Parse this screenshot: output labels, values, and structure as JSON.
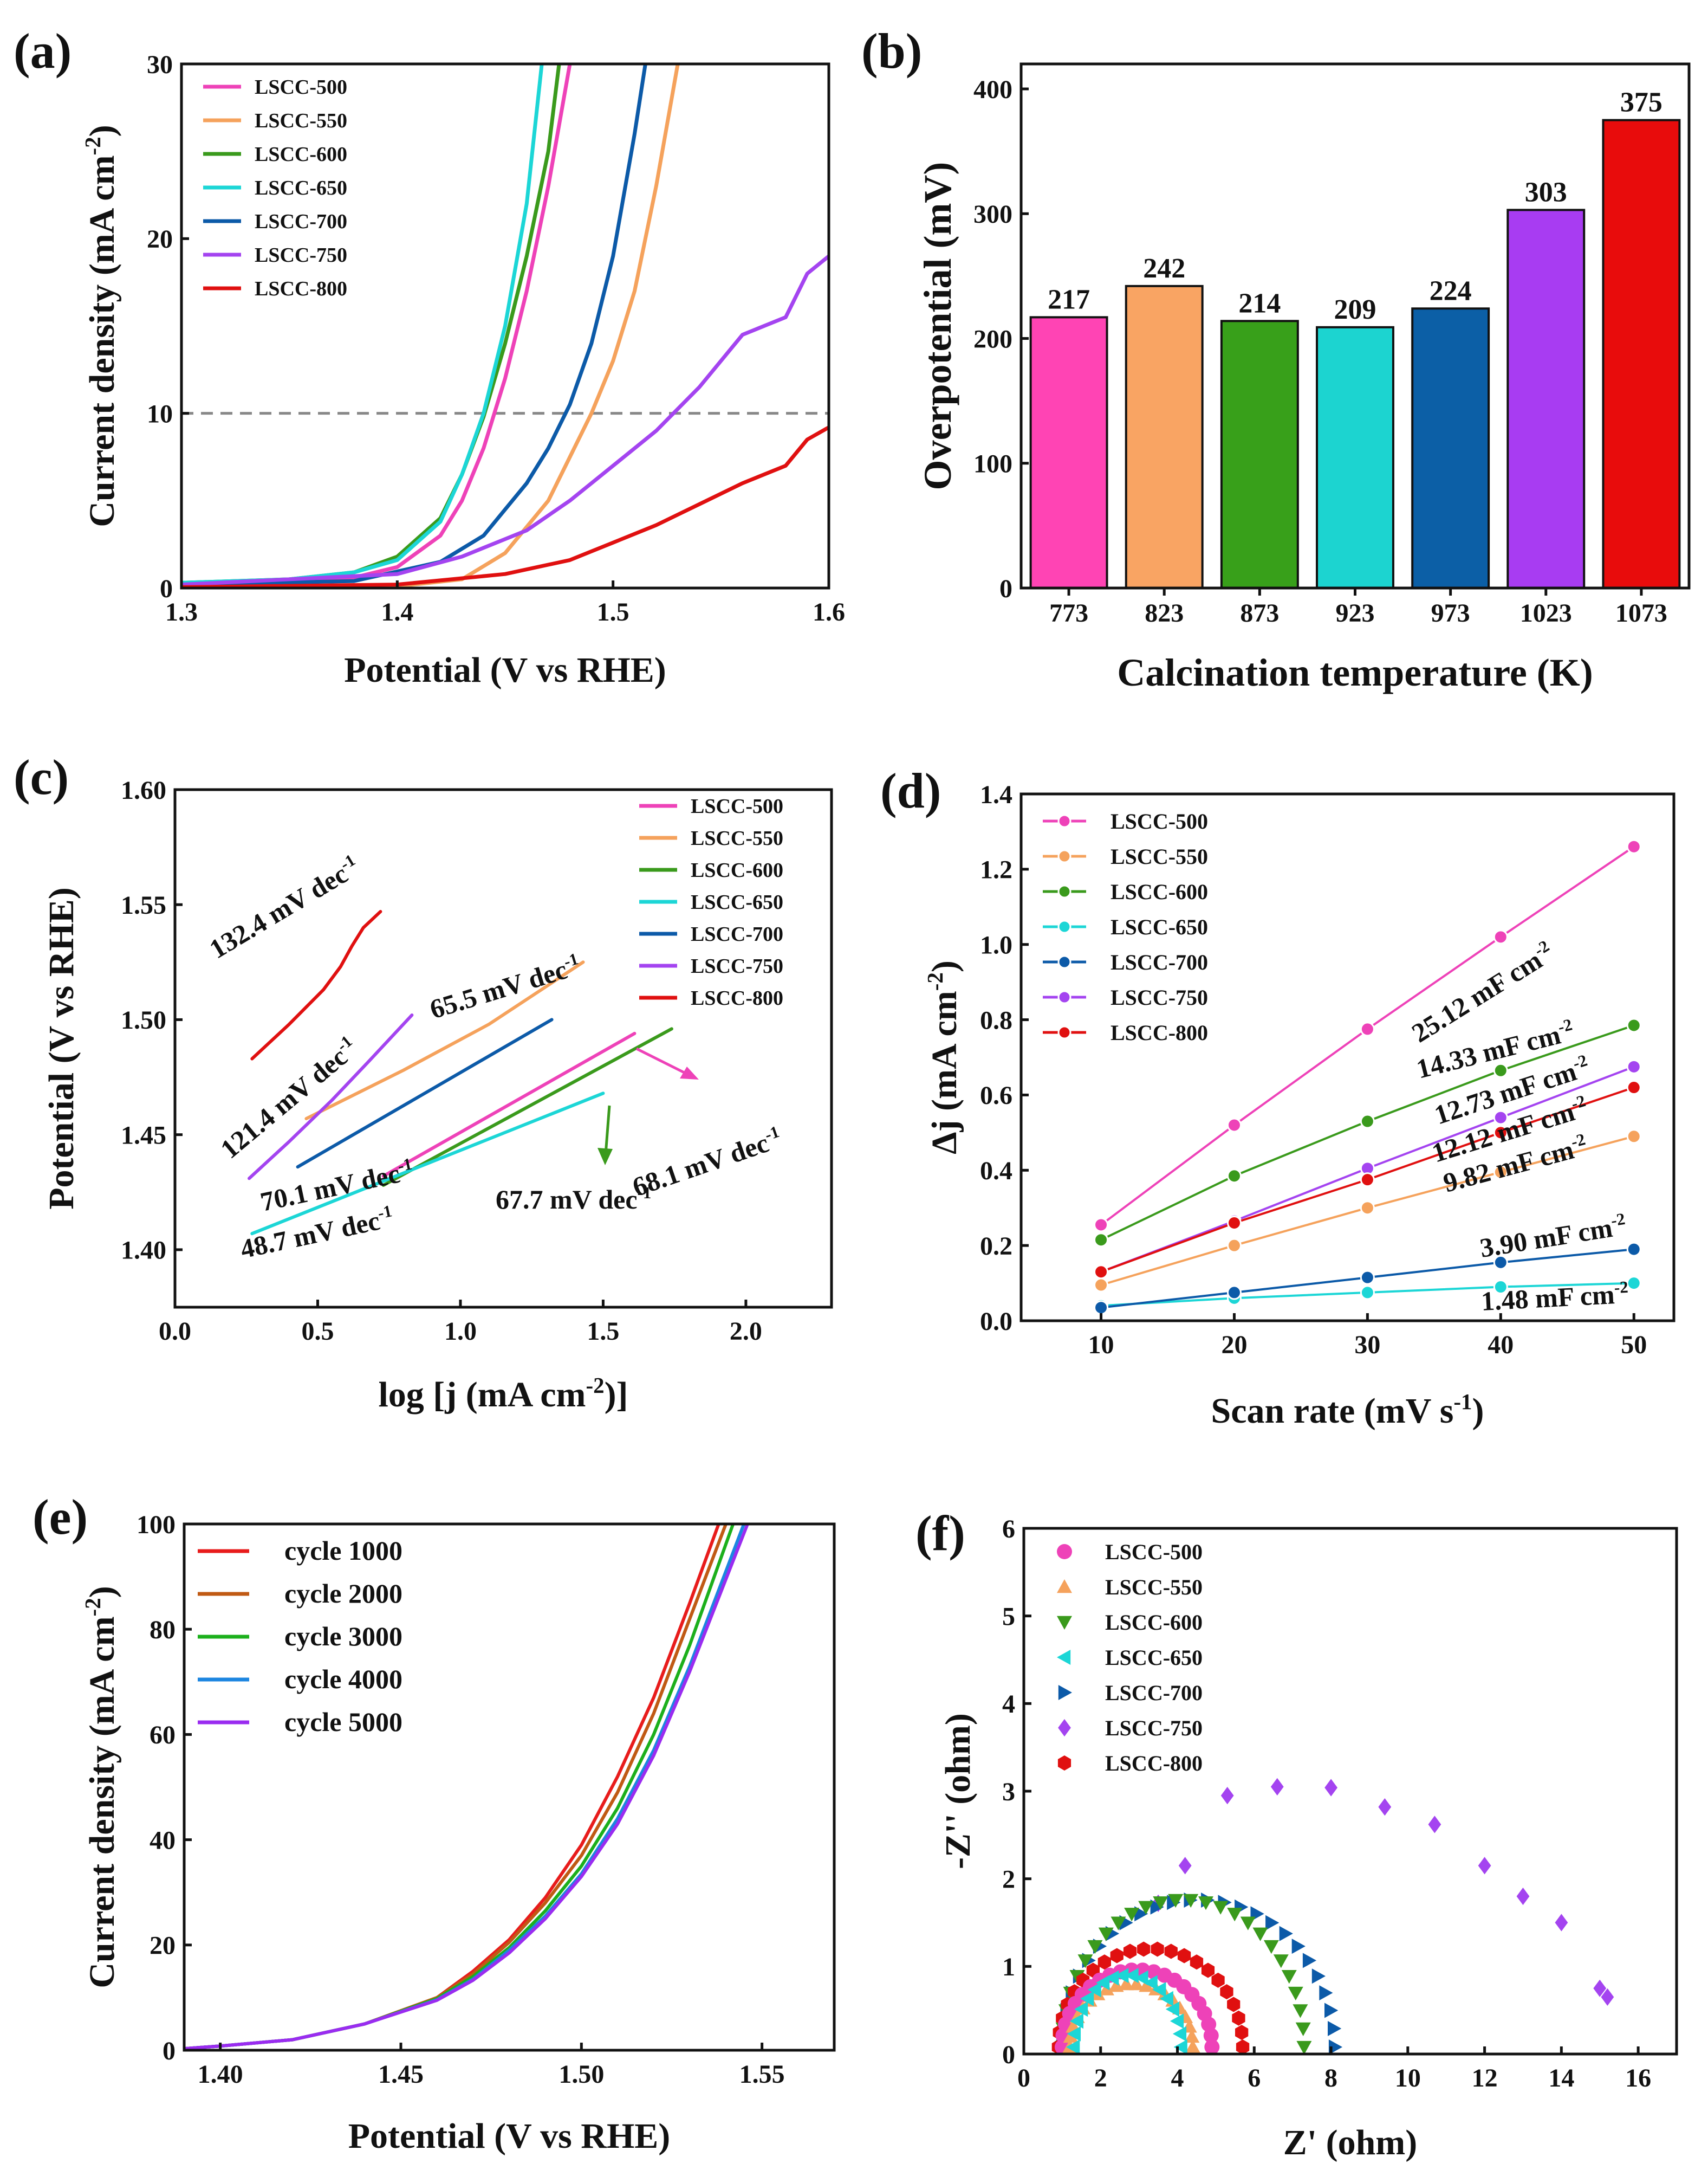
{
  "colors": {
    "LSCC-500": "#ee42b8",
    "LSCC-550": "#f5a25c",
    "LSCC-600": "#3a9a1c",
    "LSCC-650": "#1cd6d6",
    "LSCC-700": "#0c5aa8",
    "LSCC-750": "#a444f0",
    "LSCC-800": "#e01010",
    "cycle 1000": "#e81c1c",
    "cycle 2000": "#c05a14",
    "cycle 3000": "#1cb01c",
    "cycle 4000": "#1c86e0",
    "cycle 5000": "#9a2cf0",
    "ref_line": "#888888"
  },
  "chart_data": [
    {
      "panel": "(a)",
      "type": "line",
      "xlabel": "Potential (V vs RHE)",
      "ylabel": "Current density (mA cm",
      "ylabel_sup": "-2",
      "ylabel_close": ")",
      "xlim": [
        1.3,
        1.6
      ],
      "ylim": [
        0,
        30
      ],
      "xticks": [
        "1.3",
        "1.4",
        "1.5",
        "1.6"
      ],
      "xtick_values": [
        1.3,
        1.4,
        1.5,
        1.6
      ],
      "yticks": [
        "0",
        "10",
        "20",
        "30"
      ],
      "ytick_values": [
        0,
        10,
        20,
        30
      ],
      "reference_line_y": 10,
      "legend": [
        "LSCC-500",
        "LSCC-550",
        "LSCC-600",
        "LSCC-650",
        "LSCC-700",
        "LSCC-750",
        "LSCC-800"
      ],
      "series": [
        {
          "name": "LSCC-500",
          "x": [
            1.3,
            1.35,
            1.38,
            1.4,
            1.42,
            1.43,
            1.44,
            1.45,
            1.46,
            1.47,
            1.48
          ],
          "y": [
            0.3,
            0.4,
            0.6,
            1.2,
            3.0,
            5.0,
            8.0,
            12.0,
            17.0,
            23.0,
            30.0
          ]
        },
        {
          "name": "LSCC-550",
          "x": [
            1.3,
            1.4,
            1.43,
            1.45,
            1.47,
            1.48,
            1.49,
            1.5,
            1.51,
            1.52,
            1.53
          ],
          "y": [
            0.05,
            0.1,
            0.5,
            2.0,
            5.0,
            7.5,
            10.0,
            13.0,
            17.0,
            23.0,
            30.0
          ]
        },
        {
          "name": "LSCC-600",
          "x": [
            1.3,
            1.35,
            1.38,
            1.4,
            1.42,
            1.43,
            1.44,
            1.45,
            1.46,
            1.47,
            1.475
          ],
          "y": [
            0.3,
            0.5,
            0.9,
            1.8,
            4.0,
            6.5,
            9.8,
            14.0,
            19.0,
            25.0,
            30.0
          ]
        },
        {
          "name": "LSCC-650",
          "x": [
            1.3,
            1.35,
            1.38,
            1.4,
            1.42,
            1.43,
            1.44,
            1.45,
            1.46,
            1.467
          ],
          "y": [
            0.3,
            0.5,
            0.9,
            1.6,
            3.8,
            6.5,
            10.0,
            15.0,
            22.0,
            30.0
          ]
        },
        {
          "name": "LSCC-700",
          "x": [
            1.3,
            1.38,
            1.42,
            1.44,
            1.46,
            1.47,
            1.48,
            1.49,
            1.5,
            1.51,
            1.515
          ],
          "y": [
            0.2,
            0.4,
            1.5,
            3.0,
            6.0,
            8.0,
            10.5,
            14.0,
            19.0,
            26.0,
            30.0
          ]
        },
        {
          "name": "LSCC-750",
          "x": [
            1.3,
            1.4,
            1.43,
            1.46,
            1.48,
            1.5,
            1.52,
            1.54,
            1.56,
            1.58,
            1.59,
            1.6
          ],
          "y": [
            0.2,
            0.8,
            1.8,
            3.3,
            5.0,
            7.0,
            9.0,
            11.5,
            14.5,
            15.5,
            18.0,
            19.0
          ]
        },
        {
          "name": "LSCC-800",
          "x": [
            1.3,
            1.4,
            1.45,
            1.48,
            1.5,
            1.52,
            1.54,
            1.56,
            1.58,
            1.59,
            1.6
          ],
          "y": [
            0.05,
            0.2,
            0.8,
            1.6,
            2.6,
            3.6,
            4.8,
            6.0,
            7.0,
            8.5,
            9.2
          ]
        }
      ]
    },
    {
      "panel": "(b)",
      "type": "bar",
      "xlabel": "Calcination temperature (K)",
      "ylabel": "Overpotential (mV)",
      "ylim": [
        0,
        420
      ],
      "categories": [
        "773",
        "823",
        "873",
        "923",
        "973",
        "1023",
        "1073"
      ],
      "values": [
        217,
        242,
        214,
        209,
        224,
        303,
        375
      ],
      "value_labels": [
        "217",
        "242",
        "214",
        "209",
        "224",
        "303",
        "375"
      ],
      "bar_colors": [
        "#ff44b4",
        "#f9a463",
        "#38a01a",
        "#1cd4d0",
        "#0c5fa6",
        "#a83cf2",
        "#e80c0c"
      ],
      "yticks": [
        "0",
        "100",
        "200",
        "300",
        "400"
      ],
      "ytick_values": [
        0,
        100,
        200,
        300,
        400
      ]
    },
    {
      "panel": "(c)",
      "type": "line",
      "xlabel": "log [j (mA cm",
      "xlabel_sup": "-2",
      "xlabel_close": ")]",
      "ylabel": "Potential (V vs RHE)",
      "xlim": [
        0.0,
        2.3
      ],
      "ylim": [
        1.375,
        1.6
      ],
      "xticks": [
        "0.0",
        "0.5",
        "1.0",
        "1.5",
        "2.0"
      ],
      "xtick_values": [
        0.0,
        0.5,
        1.0,
        1.5,
        2.0
      ],
      "yticks": [
        "1.40",
        "1.45",
        "1.50",
        "1.55",
        "1.60"
      ],
      "ytick_values": [
        1.4,
        1.45,
        1.5,
        1.55,
        1.6
      ],
      "legend": [
        "LSCC-500",
        "LSCC-550",
        "LSCC-600",
        "LSCC-650",
        "LSCC-700",
        "LSCC-750",
        "LSCC-800"
      ],
      "series": [
        {
          "name": "LSCC-500",
          "x": [
            0.73,
            1.61
          ],
          "y": [
            1.432,
            1.494
          ]
        },
        {
          "name": "LSCC-550",
          "x": [
            0.46,
            1.43
          ],
          "y": [
            1.457,
            1.525
          ]
        },
        {
          "name": "LSCC-600",
          "x": [
            0.73,
            1.74
          ],
          "y": [
            1.428,
            1.496
          ]
        },
        {
          "name": "LSCC-650",
          "x": [
            0.27,
            1.5
          ],
          "y": [
            1.407,
            1.468
          ]
        },
        {
          "name": "LSCC-700",
          "x": [
            0.43,
            1.32
          ],
          "y": [
            1.436,
            1.5
          ]
        },
        {
          "name": "LSCC-750",
          "x": [
            0.26,
            0.83
          ],
          "y": [
            1.431,
            1.502
          ]
        },
        {
          "name": "LSCC-800",
          "x": [
            0.27,
            0.72
          ],
          "y": [
            1.483,
            1.547
          ]
        }
      ],
      "annotations": [
        {
          "series": "LSCC-800",
          "label": "132.4 mV dec",
          "sup": "-1"
        },
        {
          "series": "LSCC-550",
          "label": "65.5 mV dec",
          "sup": "-1"
        },
        {
          "series": "LSCC-750",
          "label": "121.4 mV dec",
          "sup": "-1"
        },
        {
          "series": "LSCC-700",
          "label": "70.1 mV dec",
          "sup": "-1"
        },
        {
          "series": "LSCC-500",
          "label": "68.1 mV dec",
          "sup": "-1"
        },
        {
          "series": "LSCC-600",
          "label": "67.7 mV dec",
          "sup": "-1"
        },
        {
          "series": "LSCC-650",
          "label": "48.7 mV dec",
          "sup": "-1"
        }
      ]
    },
    {
      "panel": "(d)",
      "type": "scatter",
      "xlabel": "Scan rate (mV s",
      "xlabel_sup": "-1",
      "xlabel_close": ")",
      "ylabel": "Δj (mA cm",
      "ylabel_sup": "-2",
      "ylabel_close": ")",
      "xlim": [
        4,
        53
      ],
      "ylim": [
        0,
        1.4
      ],
      "xticks": [
        "10",
        "20",
        "30",
        "40",
        "50"
      ],
      "xtick_values": [
        10,
        20,
        30,
        40,
        50
      ],
      "yticks": [
        "0.0",
        "0.2",
        "0.4",
        "0.6",
        "0.8",
        "1.0",
        "1.2",
        "1.4"
      ],
      "ytick_values": [
        0.0,
        0.2,
        0.4,
        0.6,
        0.8,
        1.0,
        1.2,
        1.4
      ],
      "x": [
        10,
        20,
        30,
        40,
        50
      ],
      "legend": [
        "LSCC-500",
        "LSCC-550",
        "LSCC-600",
        "LSCC-650",
        "LSCC-700",
        "LSCC-750",
        "LSCC-800"
      ],
      "series": [
        {
          "name": "LSCC-500",
          "values": [
            0.255,
            0.52,
            0.775,
            1.02,
            1.26
          ],
          "label": "25.12 mF cm",
          "sup": "-2"
        },
        {
          "name": "LSCC-550",
          "values": [
            0.095,
            0.2,
            0.3,
            0.395,
            0.49
          ],
          "label": "9.82 mF cm",
          "sup": "-2"
        },
        {
          "name": "LSCC-600",
          "values": [
            0.215,
            0.385,
            0.53,
            0.665,
            0.785
          ],
          "label": "14.33 mF cm",
          "sup": "-2"
        },
        {
          "name": "LSCC-650",
          "values": [
            0.04,
            0.06,
            0.075,
            0.09,
            0.1
          ],
          "label": "1.48 mF cm",
          "sup": "-2"
        },
        {
          "name": "LSCC-700",
          "values": [
            0.035,
            0.075,
            0.115,
            0.155,
            0.19
          ],
          "label": "3.90 mF cm",
          "sup": "-2"
        },
        {
          "name": "LSCC-750",
          "values": [
            0.13,
            0.265,
            0.405,
            0.54,
            0.675
          ],
          "label": "12.73 mF cm",
          "sup": "-2"
        },
        {
          "name": "LSCC-800",
          "values": [
            0.13,
            0.26,
            0.375,
            0.5,
            0.62
          ],
          "label": "12.12 mF cm",
          "sup": "-2"
        }
      ]
    },
    {
      "panel": "(e)",
      "type": "line",
      "xlabel": "Potential (V vs RHE)",
      "ylabel": "Current density (mA cm",
      "ylabel_sup": "-2",
      "ylabel_close": ")",
      "xlim": [
        1.39,
        1.57
      ],
      "ylim": [
        0,
        100
      ],
      "xticks": [
        "1.40",
        "1.45",
        "1.50",
        "1.55"
      ],
      "xtick_values": [
        1.4,
        1.45,
        1.5,
        1.55
      ],
      "yticks": [
        "0",
        "20",
        "40",
        "60",
        "80",
        "100"
      ],
      "ytick_values": [
        0,
        20,
        40,
        60,
        80,
        100
      ],
      "legend": [
        "cycle 1000",
        "cycle 2000",
        "cycle 3000",
        "cycle 4000",
        "cycle 5000"
      ],
      "series": [
        {
          "name": "cycle 1000",
          "x": [
            1.39,
            1.4,
            1.42,
            1.44,
            1.46,
            1.47,
            1.48,
            1.49,
            1.5,
            1.51,
            1.52,
            1.53,
            1.538
          ],
          "y": [
            0.3,
            0.8,
            2,
            5,
            10,
            15,
            21,
            29,
            39,
            52,
            67,
            85,
            100
          ]
        },
        {
          "name": "cycle 2000",
          "x": [
            1.39,
            1.4,
            1.42,
            1.44,
            1.46,
            1.47,
            1.48,
            1.49,
            1.5,
            1.51,
            1.52,
            1.53,
            1.54
          ],
          "y": [
            0.3,
            0.8,
            2,
            5,
            10,
            14.5,
            20.5,
            28,
            37,
            49,
            64,
            82,
            100
          ]
        },
        {
          "name": "cycle 3000",
          "x": [
            1.39,
            1.4,
            1.42,
            1.44,
            1.46,
            1.47,
            1.48,
            1.49,
            1.5,
            1.51,
            1.52,
            1.53,
            1.542
          ],
          "y": [
            0.3,
            0.8,
            2,
            5,
            9.8,
            14,
            19.5,
            26.5,
            35,
            46,
            60,
            77,
            100
          ]
        },
        {
          "name": "cycle 4000",
          "x": [
            1.39,
            1.4,
            1.42,
            1.44,
            1.46,
            1.47,
            1.48,
            1.49,
            1.5,
            1.51,
            1.52,
            1.53,
            1.545
          ],
          "y": [
            0.3,
            0.8,
            2,
            5,
            9.6,
            13.5,
            19,
            25.5,
            33.5,
            44,
            57,
            73,
            100
          ]
        },
        {
          "name": "cycle 5000",
          "x": [
            1.39,
            1.4,
            1.42,
            1.44,
            1.46,
            1.47,
            1.48,
            1.49,
            1.5,
            1.51,
            1.52,
            1.53,
            1.546
          ],
          "y": [
            0.3,
            0.8,
            2,
            5,
            9.5,
            13.3,
            18.5,
            25,
            33,
            43,
            56,
            72,
            100
          ]
        }
      ]
    },
    {
      "panel": "(f)",
      "type": "scatter",
      "xlabel": "Z' (ohm)",
      "ylabel": "-Z'' (ohm)",
      "xlim": [
        0,
        17
      ],
      "ylim": [
        0,
        6
      ],
      "xticks": [
        "0",
        "2",
        "4",
        "6",
        "8",
        "10",
        "12",
        "14",
        "16"
      ],
      "xtick_values": [
        0,
        2,
        4,
        6,
        8,
        10,
        12,
        14,
        16
      ],
      "yticks": [
        "0",
        "1",
        "2",
        "3",
        "4",
        "5",
        "6"
      ],
      "ytick_values": [
        0,
        1,
        2,
        3,
        4,
        5,
        6
      ],
      "legend": [
        "LSCC-500",
        "LSCC-550",
        "LSCC-600",
        "LSCC-650",
        "LSCC-700",
        "LSCC-750",
        "LSCC-800"
      ],
      "series": [
        {
          "name": "LSCC-500",
          "marker": "circle",
          "arc": {
            "x0": 1.0,
            "x1": 4.9,
            "peak": 0.88,
            "n": 22
          }
        },
        {
          "name": "LSCC-550",
          "marker": "triangle-up",
          "arc": {
            "x0": 1.2,
            "x1": 4.4,
            "peak": 0.72,
            "n": 20
          }
        },
        {
          "name": "LSCC-600",
          "marker": "triangle-down",
          "arc": {
            "x0": 1.0,
            "x1": 7.3,
            "peak": 1.68,
            "n": 26
          }
        },
        {
          "name": "LSCC-650",
          "marker": "triangle-left",
          "arc": {
            "x0": 1.3,
            "x1": 4.1,
            "peak": 0.82,
            "n": 18
          }
        },
        {
          "name": "LSCC-700",
          "marker": "triangle-right",
          "arc": {
            "x0": 1.0,
            "x1": 8.1,
            "peak": 1.68,
            "n": 26
          }
        },
        {
          "name": "LSCC-750",
          "marker": "diamond",
          "x": [
            3.5,
            4.2,
            5.3,
            6.6,
            8.0,
            9.4,
            10.7,
            12.0,
            13.0,
            14.0,
            15.0,
            15.2
          ],
          "y": [
            1.72,
            2.15,
            2.95,
            3.05,
            3.04,
            2.82,
            2.62,
            2.15,
            1.8,
            1.5,
            0.75,
            0.65
          ]
        },
        {
          "name": "LSCC-800",
          "marker": "hexagon",
          "arc": {
            "x0": 0.9,
            "x1": 5.7,
            "peak": 1.12,
            "n": 22
          }
        }
      ]
    }
  ],
  "panel_labels": [
    "(a)",
    "(b)",
    "(c)",
    "(d)",
    "(e)",
    "(f)"
  ]
}
